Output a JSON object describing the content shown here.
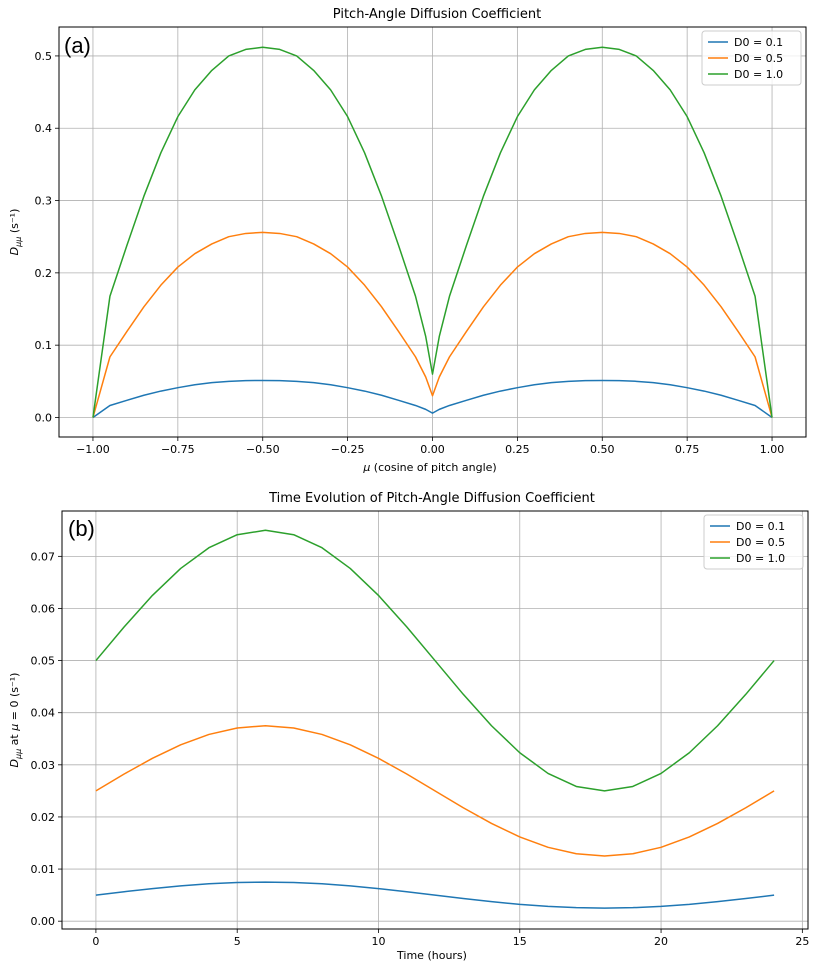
{
  "chart_data": [
    {
      "type": "line",
      "panel_label": "(a)",
      "title": "Pitch-Angle Diffusion Coefficient",
      "xlabel_symbol": "μ",
      "xlabel_text": " (cosine of pitch angle)",
      "ylabel_base": "D",
      "ylabel_sub": "μμ",
      "ylabel_tail": " (s⁻¹)",
      "xlim": [
        -1.1,
        1.1
      ],
      "ylim": [
        -0.027,
        0.54
      ],
      "xticks": [
        -1.0,
        -0.75,
        -0.5,
        -0.25,
        0.0,
        0.25,
        0.5,
        0.75,
        1.0
      ],
      "xtick_labels": [
        "−1.00",
        "−0.75",
        "−0.50",
        "−0.25",
        "0.00",
        "0.25",
        "0.50",
        "0.75",
        "1.00"
      ],
      "yticks": [
        0.0,
        0.1,
        0.2,
        0.3,
        0.4,
        0.5
      ],
      "ytick_labels": [
        "0.0",
        "0.1",
        "0.2",
        "0.3",
        "0.4",
        "0.5"
      ],
      "grid": true,
      "legend_position": "top-right",
      "x": [
        -1.0,
        -0.95,
        -0.9,
        -0.85,
        -0.8,
        -0.75,
        -0.7,
        -0.65,
        -0.6,
        -0.55,
        -0.5,
        -0.45,
        -0.4,
        -0.35,
        -0.3,
        -0.25,
        -0.2,
        -0.15,
        -0.1,
        -0.05,
        -0.02,
        0.0,
        0.02,
        0.05,
        0.1,
        0.15,
        0.2,
        0.25,
        0.3,
        0.35,
        0.4,
        0.45,
        0.5,
        0.55,
        0.6,
        0.65,
        0.7,
        0.75,
        0.8,
        0.85,
        0.9,
        0.95,
        1.0
      ],
      "series": [
        {
          "name": "D0 = 0.1",
          "color": "#1f77b4",
          "values": [
            0.0,
            0.0166,
            0.0237,
            0.0307,
            0.0365,
            0.0412,
            0.0452,
            0.0482,
            0.05,
            0.051,
            0.0512,
            0.051,
            0.05,
            0.0482,
            0.0452,
            0.0412,
            0.0365,
            0.0307,
            0.0237,
            0.0166,
            0.0112,
            0.006,
            0.0112,
            0.0166,
            0.0237,
            0.0307,
            0.0365,
            0.0412,
            0.0452,
            0.0482,
            0.05,
            0.051,
            0.0512,
            0.051,
            0.05,
            0.0482,
            0.0452,
            0.0412,
            0.0365,
            0.0307,
            0.0237,
            0.0166,
            0.0
          ]
        },
        {
          "name": "D0 = 0.5",
          "color": "#ff7f0e",
          "values": [
            0.0,
            0.0838,
            0.119,
            0.153,
            0.183,
            0.208,
            0.2265,
            0.24,
            0.25,
            0.2545,
            0.256,
            0.2545,
            0.25,
            0.24,
            0.2265,
            0.208,
            0.183,
            0.153,
            0.119,
            0.0838,
            0.056,
            0.03,
            0.056,
            0.0838,
            0.119,
            0.153,
            0.183,
            0.208,
            0.2265,
            0.24,
            0.25,
            0.2545,
            0.256,
            0.2545,
            0.25,
            0.24,
            0.2265,
            0.208,
            0.183,
            0.153,
            0.119,
            0.0838,
            0.0
          ]
        },
        {
          "name": "D0 = 1.0",
          "color": "#2ca02c",
          "values": [
            0.0,
            0.1676,
            0.238,
            0.306,
            0.366,
            0.416,
            0.453,
            0.48,
            0.5,
            0.509,
            0.512,
            0.509,
            0.5,
            0.48,
            0.453,
            0.416,
            0.366,
            0.306,
            0.238,
            0.1676,
            0.112,
            0.06,
            0.112,
            0.1676,
            0.238,
            0.306,
            0.366,
            0.416,
            0.453,
            0.48,
            0.5,
            0.509,
            0.512,
            0.509,
            0.5,
            0.48,
            0.453,
            0.416,
            0.366,
            0.306,
            0.238,
            0.1676,
            0.0
          ]
        }
      ]
    },
    {
      "type": "line",
      "panel_label": "(b)",
      "title": "Time Evolution of Pitch-Angle Diffusion Coefficient",
      "xlabel": "Time (hours)",
      "ylabel_base": "D",
      "ylabel_sub": "μμ",
      "ylabel_mid": " at ",
      "ylabel_sym": "μ",
      "ylabel_tail": " = 0 (s⁻¹)",
      "xlim": [
        -1.2,
        25.2
      ],
      "ylim": [
        -0.0015,
        0.0787
      ],
      "xticks": [
        0,
        5,
        10,
        15,
        20,
        25
      ],
      "xtick_labels": [
        "0",
        "5",
        "10",
        "15",
        "20",
        "25"
      ],
      "yticks": [
        0.0,
        0.01,
        0.02,
        0.03,
        0.04,
        0.05,
        0.06,
        0.07
      ],
      "ytick_labels": [
        "0.00",
        "0.01",
        "0.02",
        "0.03",
        "0.04",
        "0.05",
        "0.06",
        "0.07"
      ],
      "grid": true,
      "legend_position": "top-right",
      "x": [
        0,
        1,
        2,
        3,
        4,
        5,
        6,
        7,
        8,
        9,
        10,
        11,
        12,
        13,
        14,
        15,
        16,
        17,
        18,
        19,
        20,
        21,
        22,
        23,
        24
      ],
      "series": [
        {
          "name": "D0 = 0.1",
          "color": "#1f77b4",
          "values": [
            0.005,
            0.00565,
            0.00625,
            0.00677,
            0.00717,
            0.00741,
            0.0075,
            0.00741,
            0.00717,
            0.00677,
            0.00625,
            0.00565,
            0.005,
            0.00435,
            0.00375,
            0.00323,
            0.00283,
            0.00259,
            0.0025,
            0.00259,
            0.00283,
            0.00323,
            0.00375,
            0.00435,
            0.005
          ]
        },
        {
          "name": "D0 = 0.5",
          "color": "#ff7f0e",
          "values": [
            0.025,
            0.02824,
            0.03125,
            0.03384,
            0.03583,
            0.03707,
            0.0375,
            0.03707,
            0.03583,
            0.03384,
            0.03125,
            0.02824,
            0.025,
            0.02176,
            0.01875,
            0.01616,
            0.01417,
            0.01293,
            0.0125,
            0.01293,
            0.01417,
            0.01616,
            0.01875,
            0.02176,
            0.025
          ]
        },
        {
          "name": "D0 = 1.0",
          "color": "#2ca02c",
          "values": [
            0.05,
            0.05647,
            0.0625,
            0.06768,
            0.07165,
            0.07415,
            0.075,
            0.07415,
            0.07165,
            0.06768,
            0.0625,
            0.05647,
            0.05,
            0.04353,
            0.0375,
            0.03232,
            0.02835,
            0.02585,
            0.025,
            0.02585,
            0.02835,
            0.03232,
            0.0375,
            0.04353,
            0.05
          ]
        }
      ]
    }
  ]
}
